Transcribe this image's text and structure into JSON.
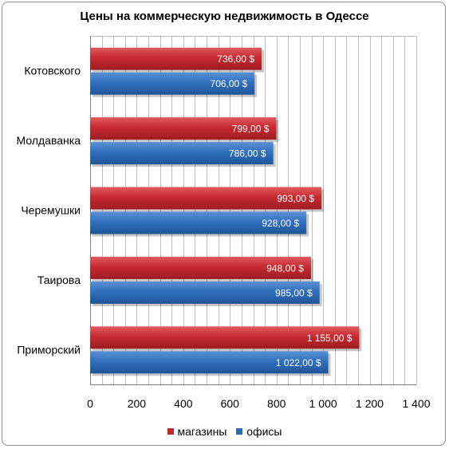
{
  "chart_data": {
    "type": "bar",
    "orientation": "horizontal",
    "title": "Цены на коммерческую недвижимость в Одессе",
    "categories": [
      "Котовского",
      "Молдаванка",
      "Черемушки",
      "Таирова",
      "Приморский"
    ],
    "series": [
      {
        "name": "магазины",
        "color": "#c0272d",
        "values": [
          736,
          799,
          993,
          948,
          1155
        ],
        "labels": [
          "736,00 $",
          "799,00 $",
          "993,00 $",
          "948,00 $",
          "1 155,00 $"
        ]
      },
      {
        "name": "офисы",
        "color": "#2e6bb4",
        "values": [
          706,
          786,
          928,
          985,
          1022
        ],
        "labels": [
          "706,00 $",
          "786,00 $",
          "928,00 $",
          "985,00 $",
          "1 022,00  $"
        ]
      }
    ],
    "xlim": [
      0,
      1400
    ],
    "x_ticks": [
      0,
      200,
      400,
      600,
      800,
      1000,
      1200,
      1400
    ],
    "x_tick_labels": [
      "0",
      "200",
      "400",
      "600",
      "800",
      "1 000",
      "1 200",
      "1 400"
    ],
    "grid": true,
    "legend_position": "bottom"
  }
}
